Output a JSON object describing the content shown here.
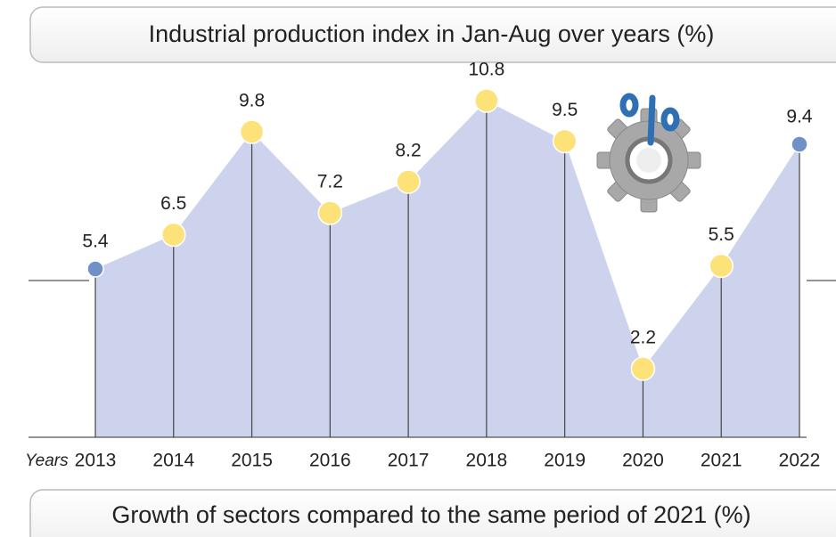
{
  "chart_data": {
    "type": "area",
    "title": "Industrial production index in Jan-Aug over years (%)",
    "x_label": "Years",
    "categories": [
      "2013",
      "2014",
      "2015",
      "2016",
      "2017",
      "2018",
      "2019",
      "2020",
      "2021",
      "2022"
    ],
    "values": [
      5.4,
      6.5,
      9.8,
      7.2,
      8.2,
      10.8,
      9.5,
      2.2,
      5.5,
      9.4
    ],
    "ylim": [
      0,
      12.5
    ],
    "color": "#cdd3ec",
    "marker_color": "#fde27a",
    "endpoint_color": "#7090c8"
  },
  "next_section": {
    "title": "Growth of sectors compared to the same period of 2021 (%)"
  }
}
